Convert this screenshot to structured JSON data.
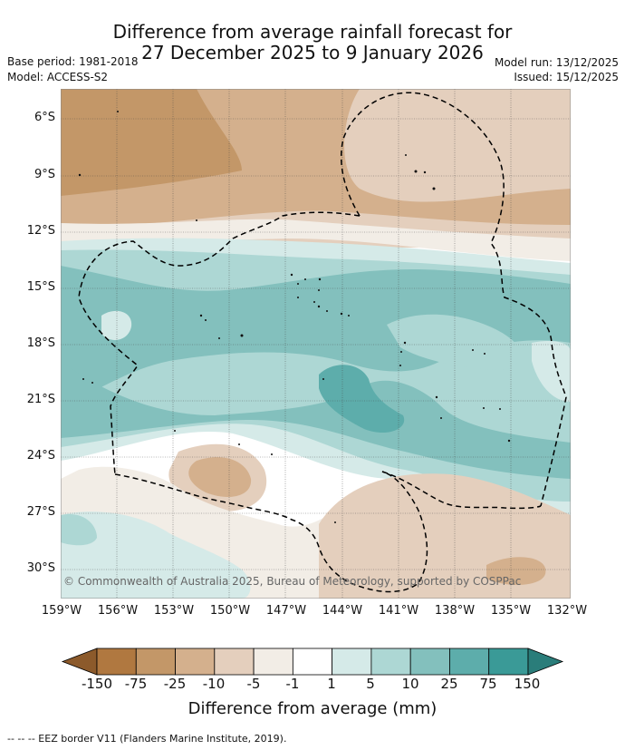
{
  "title": {
    "line1": "Difference from average rainfall forecast for",
    "line2": "27 December 2025 to 9 January 2026"
  },
  "meta": {
    "base_period": "Base period: 1981-2018",
    "model": "Model: ACCESS-S2",
    "model_run": "Model run: 13/12/2025",
    "issued": "Issued: 15/12/2025"
  },
  "map": {
    "lat_labels": [
      "6°S",
      "9°S",
      "12°S",
      "15°S",
      "18°S",
      "21°S",
      "24°S",
      "27°S",
      "30°S"
    ],
    "lon_labels": [
      "159°W",
      "156°W",
      "153°W",
      "150°W",
      "147°W",
      "144°W",
      "141°W",
      "138°W",
      "135°W",
      "132°W"
    ],
    "copyright": "© Commonwealth of Australia 2025, Bureau of Meteorology, supported by COSPPac"
  },
  "colorbar": {
    "labels": [
      "-150",
      "-75",
      "-25",
      "-10",
      "-5",
      "-1",
      "1",
      "5",
      "10",
      "25",
      "75",
      "150"
    ],
    "colors": [
      "#8c5a2b",
      "#b07840",
      "#c39768",
      "#d4b08d",
      "#e4cfbd",
      "#f2ede6",
      "#ffffff",
      "#d5eae8",
      "#add7d4",
      "#83c0bd",
      "#5dadab",
      "#3a9a97",
      "#2a7d7a"
    ],
    "title": "Difference from average (mm)"
  },
  "footer": {
    "legend_line": "-- -- -- EEZ border V11 (Flanders Marine Institute, 2019)."
  }
}
